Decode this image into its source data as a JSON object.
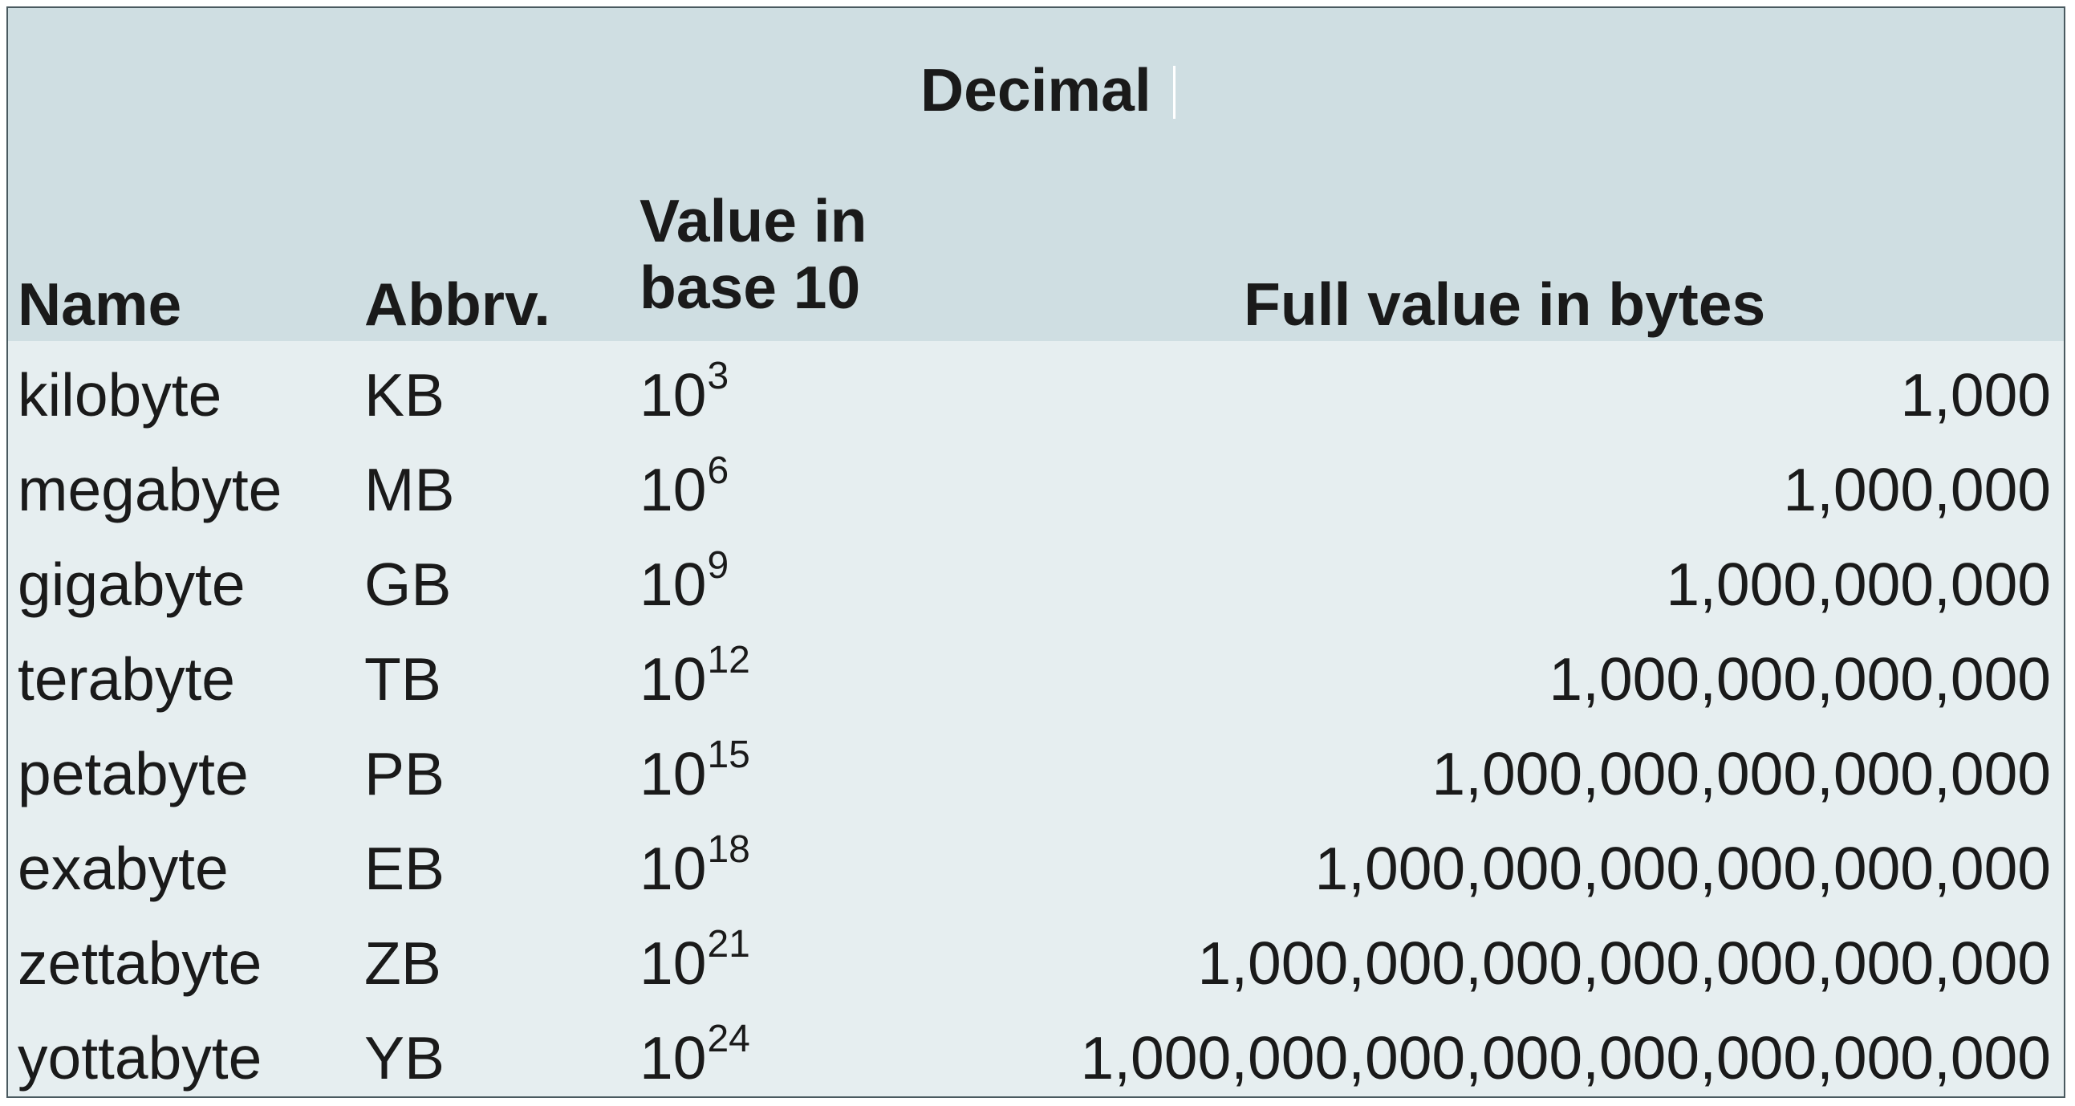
{
  "table": {
    "group_title": "Decimal",
    "headers": {
      "name": "Name",
      "abbr": "Abbrv.",
      "base_line1": "Value in",
      "base_line2": "base 10",
      "full": "Full value in bytes"
    },
    "rows": [
      {
        "name": "kilobyte",
        "abbr": "KB",
        "base": "10",
        "exp": "3",
        "full": "1,000"
      },
      {
        "name": "megabyte",
        "abbr": "MB",
        "base": "10",
        "exp": "6",
        "full": "1,000,000"
      },
      {
        "name": "gigabyte",
        "abbr": "GB",
        "base": "10",
        "exp": "9",
        "full": "1,000,000,000"
      },
      {
        "name": "terabyte",
        "abbr": "TB",
        "base": "10",
        "exp": "12",
        "full": "1,000,000,000,000"
      },
      {
        "name": "petabyte",
        "abbr": "PB",
        "base": "10",
        "exp": "15",
        "full": "1,000,000,000,000,000"
      },
      {
        "name": "exabyte",
        "abbr": "EB",
        "base": "10",
        "exp": "18",
        "full": "1,000,000,000,000,000,000"
      },
      {
        "name": "zettabyte",
        "abbr": "ZB",
        "base": "10",
        "exp": "21",
        "full": "1,000,000,000,000,000,000,000"
      },
      {
        "name": "yottabyte",
        "abbr": "YB",
        "base": "10",
        "exp": "24",
        "full": "1,000,000,000,000,000,000,000,000"
      }
    ],
    "colors": {
      "header_bg": "#cfdee2",
      "body_bg": "#e6eef0",
      "border": "#4a5a60",
      "text": "#1a1a1a"
    }
  }
}
